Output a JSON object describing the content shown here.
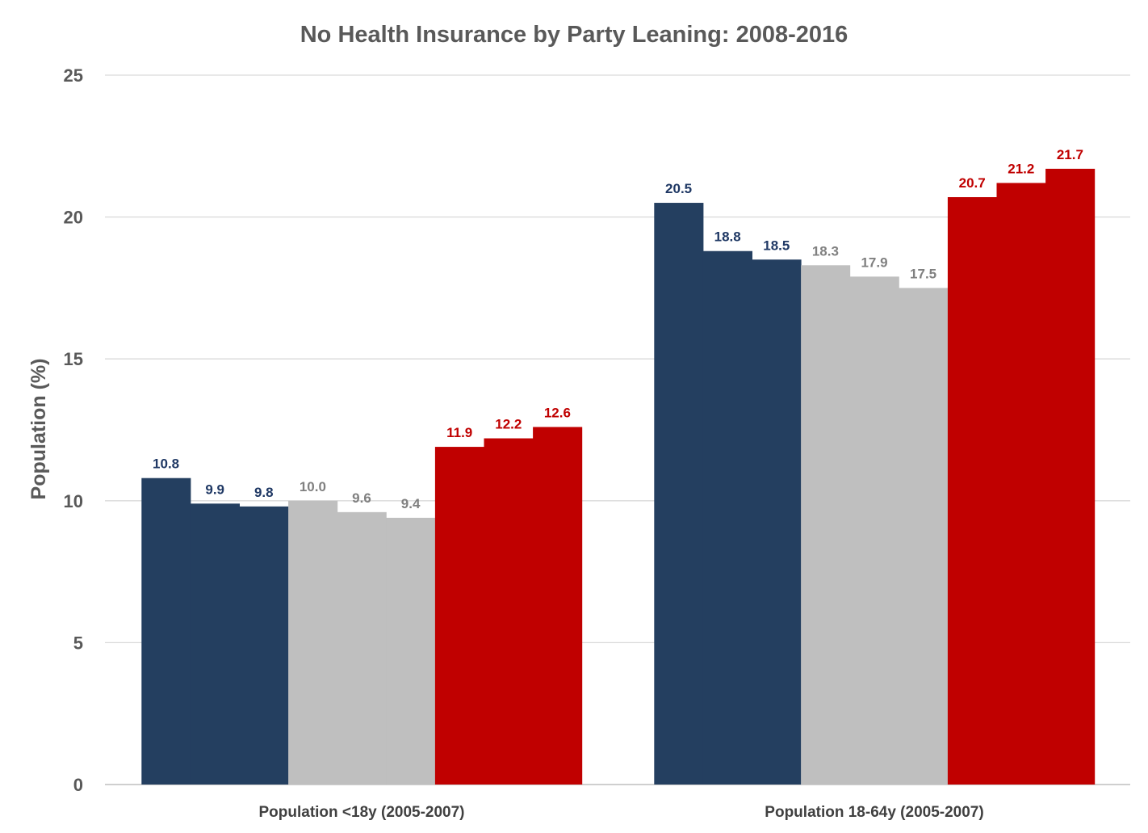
{
  "chart_data": {
    "type": "bar",
    "title": "No Health Insurance by Party Leaning: 2008-2016",
    "xlabel": "",
    "ylabel": "Population (%)",
    "ylim": [
      0,
      25
    ],
    "yticks": [
      0,
      5,
      10,
      15,
      20,
      25
    ],
    "grid": true,
    "legend": "none",
    "categories": [
      "Population <18y (2005-2007)",
      "Population 18-64y (2005-2007)"
    ],
    "series": [
      {
        "values": [
          10.8,
          20.5
        ],
        "color": "#243f60",
        "label_color": "#1f3864"
      },
      {
        "values": [
          9.9,
          18.8
        ],
        "color": "#243f60",
        "label_color": "#1f3864"
      },
      {
        "values": [
          9.8,
          18.5
        ],
        "color": "#243f60",
        "label_color": "#1f3864"
      },
      {
        "values": [
          10.0,
          18.3
        ],
        "color": "#bfbfbf",
        "label_color": "#808080"
      },
      {
        "values": [
          9.6,
          17.9
        ],
        "color": "#bfbfbf",
        "label_color": "#808080"
      },
      {
        "values": [
          9.4,
          17.5
        ],
        "color": "#bfbfbf",
        "label_color": "#808080"
      },
      {
        "values": [
          11.9,
          20.7
        ],
        "color": "#c00000",
        "label_color": "#c00000"
      },
      {
        "values": [
          12.2,
          21.2
        ],
        "color": "#c00000",
        "label_color": "#c00000"
      },
      {
        "values": [
          12.6,
          21.7
        ],
        "color": "#c00000",
        "label_color": "#c00000"
      }
    ]
  }
}
